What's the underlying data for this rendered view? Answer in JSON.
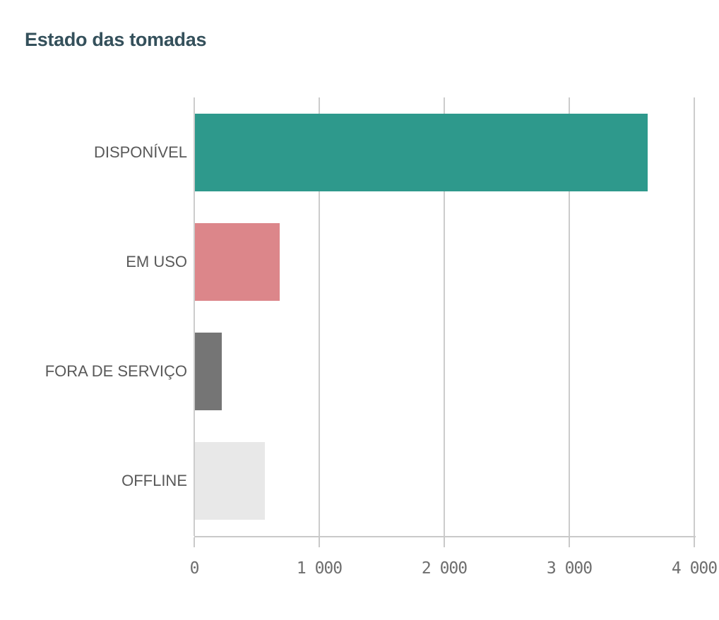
{
  "chart": {
    "title": "Estado das tomadas",
    "title_color": "#34505b"
  },
  "chart_data": {
    "type": "bar",
    "orientation": "horizontal",
    "title": "Estado das tomadas",
    "xlabel": "",
    "ylabel": "",
    "categories": [
      "DISPONÍVEL",
      "EM USO",
      "FORA DE SERVIÇO",
      "OFFLINE"
    ],
    "values": [
      3620,
      680,
      215,
      560
    ],
    "bar_colors": [
      "#2e998c",
      "#dc868a",
      "#757575",
      "#e8e8e8"
    ],
    "xlim": [
      0,
      4000
    ],
    "x_tick_values": [
      0,
      1000,
      2000,
      3000,
      4000
    ],
    "x_tick_labels": [
      "0",
      "1 000",
      "2 000",
      "3 000",
      "4 000"
    ],
    "grid": "vertical-gridlines-on",
    "legend": "none"
  },
  "style": {
    "gridline_color": "#cccccc",
    "axis_color": "#c9c9c9",
    "category_label_color": "#595959",
    "tick_label_color": "#6e6e6e",
    "background": "#ffffff"
  }
}
